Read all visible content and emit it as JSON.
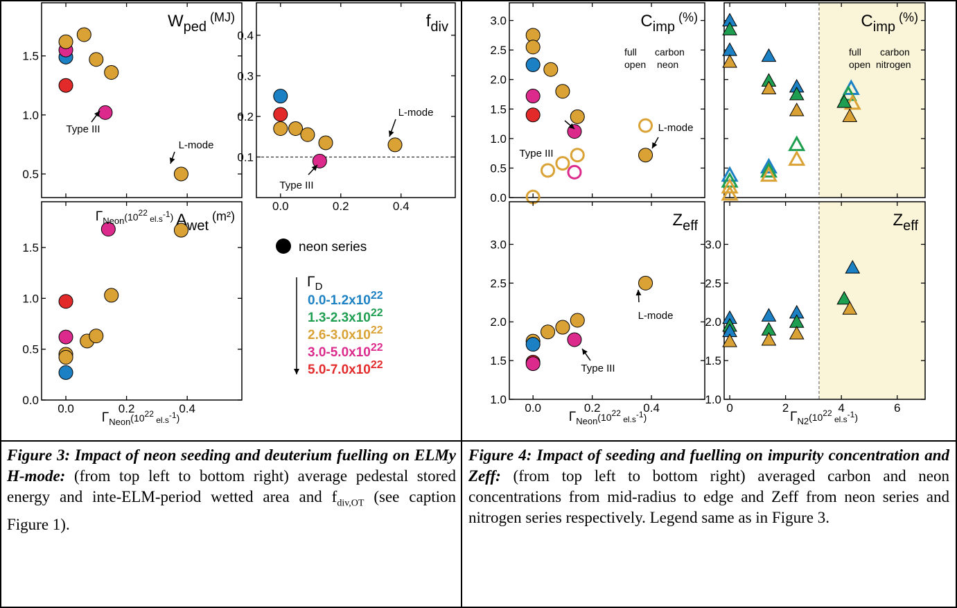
{
  "colors": {
    "blue": "#1B80C4",
    "green": "#1E9E50",
    "orange": "#DAA235",
    "magenta": "#DB2A8C",
    "red": "#E32A2A",
    "shade": "#FAF5D8"
  },
  "chart_data": [
    {
      "id": "wped",
      "type": "scatter",
      "title": "W",
      "title_sub": "ped",
      "title_post": " (MJ)",
      "ylim": [
        0.3,
        1.95
      ],
      "yticks": [
        "0.5",
        "1.0",
        "1.5"
      ],
      "xlim": [
        -0.08,
        0.58
      ],
      "points": [
        {
          "x": 0,
          "y": 1.49,
          "c": "blue"
        },
        {
          "x": 0,
          "y": 1.55,
          "c": "magenta"
        },
        {
          "x": 0,
          "y": 1.25,
          "c": "red"
        },
        {
          "x": 0,
          "y": 1.62,
          "c": "orange"
        },
        {
          "x": 0.06,
          "y": 1.68,
          "c": "orange"
        },
        {
          "x": 0.1,
          "y": 1.47,
          "c": "orange"
        },
        {
          "x": 0.15,
          "y": 1.36,
          "c": "orange"
        },
        {
          "x": 0.13,
          "y": 1.02,
          "c": "magenta"
        },
        {
          "x": 0.38,
          "y": 0.5,
          "c": "orange"
        }
      ],
      "annotations": [
        {
          "text": "Type III"
        },
        {
          "text": "L-mode"
        }
      ]
    },
    {
      "id": "fdiv",
      "type": "scatter",
      "title": "f",
      "title_sub": "div",
      "title_post": "",
      "ylim": [
        0.0,
        0.48
      ],
      "yticks": [
        "0.1",
        "0.2",
        "0.3",
        "0.4"
      ],
      "xlim": [
        -0.08,
        0.58
      ],
      "xticks": [
        "0.0",
        "0.2",
        "0.4"
      ],
      "hline": 0.1,
      "points": [
        {
          "x": 0,
          "y": 0.25,
          "c": "blue"
        },
        {
          "x": 0,
          "y": 0.205,
          "c": "red"
        },
        {
          "x": 0,
          "y": 0.17,
          "c": "orange"
        },
        {
          "x": 0.05,
          "y": 0.17,
          "c": "orange"
        },
        {
          "x": 0.09,
          "y": 0.155,
          "c": "orange"
        },
        {
          "x": 0.15,
          "y": 0.135,
          "c": "orange"
        },
        {
          "x": 0.13,
          "y": 0.09,
          "c": "magenta"
        },
        {
          "x": 0.38,
          "y": 0.13,
          "c": "orange"
        }
      ],
      "annotations": [
        {
          "text": "Type III"
        },
        {
          "text": "L-mode"
        }
      ]
    },
    {
      "id": "awet",
      "type": "scatter",
      "title": "A",
      "title_sub": "wet",
      "title_post": " (m²)",
      "ylim": [
        0.0,
        1.95
      ],
      "yticks": [
        "0.0",
        "0.5",
        "1.0",
        "1.5"
      ],
      "xlim": [
        -0.08,
        0.58
      ],
      "xticks": [
        "0.0",
        "0.2",
        "0.4"
      ],
      "points": [
        {
          "x": 0,
          "y": 0.27,
          "c": "blue"
        },
        {
          "x": 0,
          "y": 0.97,
          "c": "red"
        },
        {
          "x": 0,
          "y": 0.62,
          "c": "magenta"
        },
        {
          "x": 0,
          "y": 0.45,
          "c": "orange"
        },
        {
          "x": 0,
          "y": 0.42,
          "c": "orange"
        },
        {
          "x": 0.07,
          "y": 0.58,
          "c": "orange"
        },
        {
          "x": 0.1,
          "y": 0.63,
          "c": "orange"
        },
        {
          "x": 0.15,
          "y": 1.03,
          "c": "orange"
        },
        {
          "x": 0.14,
          "y": 1.68,
          "c": "magenta"
        },
        {
          "x": 0.38,
          "y": 1.67,
          "c": "orange"
        }
      ]
    },
    {
      "id": "cimp_neon",
      "type": "scatter",
      "title": "C",
      "title_sub": "imp",
      "title_post": " (%)",
      "ylim": [
        0.0,
        3.3
      ],
      "yticks": [
        "0.0",
        "0.5",
        "1.0",
        "1.5",
        "2.0",
        "2.5",
        "3.0"
      ],
      "xlim": [
        -0.08,
        0.58
      ],
      "points": [
        {
          "x": 0,
          "y": 2.75,
          "c": "orange"
        },
        {
          "x": 0,
          "y": 2.55,
          "c": "orange"
        },
        {
          "x": 0,
          "y": 2.25,
          "c": "blue"
        },
        {
          "x": 0.06,
          "y": 2.17,
          "c": "orange"
        },
        {
          "x": 0.1,
          "y": 1.8,
          "c": "orange"
        },
        {
          "x": 0,
          "y": 1.72,
          "c": "magenta"
        },
        {
          "x": 0,
          "y": 1.4,
          "c": "red"
        },
        {
          "x": 0.15,
          "y": 1.37,
          "c": "orange"
        },
        {
          "x": 0.14,
          "y": 1.12,
          "c": "magenta"
        },
        {
          "x": 0.38,
          "y": 0.72,
          "c": "orange"
        },
        {
          "x": 0,
          "y": 0.01,
          "c": "orange",
          "open": true
        },
        {
          "x": 0.05,
          "y": 0.46,
          "c": "orange",
          "open": true
        },
        {
          "x": 0.1,
          "y": 0.58,
          "c": "orange",
          "open": true
        },
        {
          "x": 0.15,
          "y": 0.72,
          "c": "orange",
          "open": true
        },
        {
          "x": 0.14,
          "y": 0.43,
          "c": "magenta",
          "open": true
        },
        {
          "x": 0.38,
          "y": 1.22,
          "c": "orange",
          "open": true
        }
      ],
      "annotations": [
        {
          "text": "Type III"
        },
        {
          "text": "L-mode"
        }
      ]
    },
    {
      "id": "cimp_n2",
      "type": "scatter",
      "title": "C",
      "title_sub": "imp",
      "title_post": " (%)",
      "ylim": [
        0.0,
        3.3
      ],
      "xlim": [
        -0.2,
        7.0
      ],
      "shade_from": 3.2,
      "points": [
        {
          "x": 0,
          "y": 3.0,
          "c": "blue",
          "m": "tri"
        },
        {
          "x": 0,
          "y": 2.85,
          "c": "green",
          "m": "tri"
        },
        {
          "x": 0,
          "y": 2.5,
          "c": "blue",
          "m": "tri"
        },
        {
          "x": 0,
          "y": 2.3,
          "c": "orange",
          "m": "tri"
        },
        {
          "x": 1.4,
          "y": 2.4,
          "c": "blue",
          "m": "tri"
        },
        {
          "x": 1.4,
          "y": 1.98,
          "c": "green",
          "m": "tri"
        },
        {
          "x": 1.4,
          "y": 1.85,
          "c": "orange",
          "m": "tri"
        },
        {
          "x": 2.4,
          "y": 1.88,
          "c": "blue",
          "m": "tri"
        },
        {
          "x": 2.4,
          "y": 1.75,
          "c": "green",
          "m": "tri"
        },
        {
          "x": 2.4,
          "y": 1.48,
          "c": "orange",
          "m": "tri"
        },
        {
          "x": 4.35,
          "y": 1.85,
          "c": "blue",
          "m": "tri",
          "open": true
        },
        {
          "x": 4.25,
          "y": 1.75,
          "c": "green",
          "m": "tri",
          "open": true
        },
        {
          "x": 4.4,
          "y": 1.6,
          "c": "orange",
          "m": "tri",
          "open": true
        },
        {
          "x": 4.1,
          "y": 1.62,
          "c": "green",
          "m": "tri"
        },
        {
          "x": 4.3,
          "y": 1.38,
          "c": "orange",
          "m": "tri"
        },
        {
          "x": 0,
          "y": 0.38,
          "c": "blue",
          "m": "tri",
          "open": true
        },
        {
          "x": 0,
          "y": 0.28,
          "c": "green",
          "m": "tri",
          "open": true
        },
        {
          "x": 0,
          "y": 0.18,
          "c": "orange",
          "m": "tri",
          "open": true
        },
        {
          "x": 0,
          "y": 0.06,
          "c": "orange",
          "m": "tri",
          "open": true
        },
        {
          "x": 1.4,
          "y": 0.52,
          "c": "blue",
          "m": "tri",
          "open": true
        },
        {
          "x": 1.4,
          "y": 0.45,
          "c": "green",
          "m": "tri",
          "open": true
        },
        {
          "x": 1.4,
          "y": 0.38,
          "c": "orange",
          "m": "tri",
          "open": true
        },
        {
          "x": 2.4,
          "y": 0.9,
          "c": "green",
          "m": "tri",
          "open": true
        },
        {
          "x": 2.4,
          "y": 0.65,
          "c": "orange",
          "m": "tri",
          "open": true
        }
      ]
    },
    {
      "id": "zeff_neon",
      "type": "scatter",
      "title": "Z",
      "title_sub": "eff",
      "title_post": "",
      "ylim": [
        1.0,
        3.55
      ],
      "yticks": [
        "1.0",
        "1.5",
        "2.0",
        "2.5",
        "3.0"
      ],
      "xlim": [
        -0.08,
        0.58
      ],
      "xticks": [
        "0.0",
        "0.2",
        "0.4"
      ],
      "points": [
        {
          "x": 0,
          "y": 1.75,
          "c": "orange"
        },
        {
          "x": 0,
          "y": 1.71,
          "c": "blue"
        },
        {
          "x": 0,
          "y": 1.48,
          "c": "red"
        },
        {
          "x": 0,
          "y": 1.46,
          "c": "magenta"
        },
        {
          "x": 0.05,
          "y": 1.87,
          "c": "orange"
        },
        {
          "x": 0.1,
          "y": 1.93,
          "c": "orange"
        },
        {
          "x": 0.15,
          "y": 2.02,
          "c": "orange"
        },
        {
          "x": 0.14,
          "y": 1.77,
          "c": "magenta"
        },
        {
          "x": 0.38,
          "y": 2.5,
          "c": "orange"
        }
      ],
      "annotations": [
        {
          "text": "Type III"
        },
        {
          "text": "L-mode"
        }
      ]
    },
    {
      "id": "zeff_n2",
      "type": "scatter",
      "title": "Z",
      "title_sub": "eff",
      "title_post": "",
      "ylim": [
        1.0,
        3.55
      ],
      "yticks": [
        "1.0",
        "1.5",
        "2.0",
        "2.5",
        "3.0"
      ],
      "xlim": [
        -0.2,
        7.0
      ],
      "xticks": [
        "0",
        "2",
        "4",
        "6"
      ],
      "shade_from": 3.2,
      "points": [
        {
          "x": 0,
          "y": 2.05,
          "c": "blue",
          "m": "tri"
        },
        {
          "x": 0,
          "y": 1.95,
          "c": "green",
          "m": "tri"
        },
        {
          "x": 0,
          "y": 1.88,
          "c": "blue",
          "m": "tri"
        },
        {
          "x": 0,
          "y": 1.75,
          "c": "orange",
          "m": "tri"
        },
        {
          "x": 1.4,
          "y": 2.08,
          "c": "blue",
          "m": "tri"
        },
        {
          "x": 1.4,
          "y": 1.9,
          "c": "green",
          "m": "tri"
        },
        {
          "x": 1.4,
          "y": 1.77,
          "c": "orange",
          "m": "tri"
        },
        {
          "x": 2.4,
          "y": 2.12,
          "c": "blue",
          "m": "tri"
        },
        {
          "x": 2.4,
          "y": 2.0,
          "c": "green",
          "m": "tri"
        },
        {
          "x": 2.4,
          "y": 1.85,
          "c": "orange",
          "m": "tri"
        },
        {
          "x": 4.4,
          "y": 2.7,
          "c": "blue",
          "m": "tri"
        },
        {
          "x": 4.1,
          "y": 2.3,
          "c": "green",
          "m": "tri"
        },
        {
          "x": 4.3,
          "y": 2.17,
          "c": "orange",
          "m": "tri"
        }
      ]
    }
  ],
  "axis_labels": {
    "gamma": "Γ",
    "neon_sub": "Neon",
    "n2_sub": "N2",
    "unit_pre": "(10",
    "unit_exp": "22",
    "unit_post": " el.s",
    "unit_exp2": "-1",
    "unit_close": ")"
  },
  "fig4_labels": {
    "full": "full",
    "open": "open",
    "carbon": "carbon",
    "neon": "neon",
    "nitrogen": "nitrogen"
  },
  "legend": {
    "series": "neon series",
    "gamma": "Γ",
    "gamma_sub": "D",
    "ranges": [
      {
        "text": "0.0-1.2x10",
        "exp": "22",
        "c": "blue"
      },
      {
        "text": "1.3-2.3x10",
        "exp": "22",
        "c": "green"
      },
      {
        "text": "2.6-3.0x10",
        "exp": "22",
        "c": "orange"
      },
      {
        "text": "3.0-5.0x10",
        "exp": "22",
        "c": "magenta"
      },
      {
        "text": "5.0-7.0x10",
        "exp": "22",
        "c": "red"
      }
    ]
  },
  "captions": {
    "fig3_lead": "Figure 3: Impact of neon seeding and deuterium fuelling on ELMy H-mode:",
    "fig3_body": "(from top left to bottom right) average pedestal stored energy and inte-ELM-period wetted area and f",
    "fig3_sub": "div,OT",
    "fig3_tail": " (see caption Figure 1).",
    "fig4_lead": "Figure 4: Impact of seeding and fuelling on impurity concentration and Zeff:",
    "fig4_body": "(from top left to bottom right) averaged carbon and neon concentrations from mid-radius to edge and Zeff from neon series and nitrogen series respectively. Legend same as in Figure 3."
  }
}
